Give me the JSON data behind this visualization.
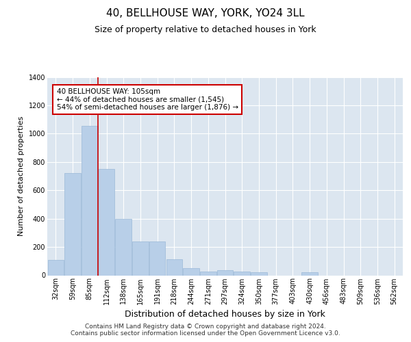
{
  "title": "40, BELLHOUSE WAY, YORK, YO24 3LL",
  "subtitle": "Size of property relative to detached houses in York",
  "xlabel": "Distribution of detached houses by size in York",
  "ylabel": "Number of detached properties",
  "categories": [
    "32sqm",
    "59sqm",
    "85sqm",
    "112sqm",
    "138sqm",
    "165sqm",
    "191sqm",
    "218sqm",
    "244sqm",
    "271sqm",
    "297sqm",
    "324sqm",
    "350sqm",
    "377sqm",
    "403sqm",
    "430sqm",
    "456sqm",
    "483sqm",
    "509sqm",
    "536sqm",
    "562sqm"
  ],
  "values": [
    110,
    720,
    1055,
    750,
    400,
    240,
    240,
    115,
    50,
    25,
    35,
    25,
    20,
    0,
    0,
    20,
    0,
    0,
    0,
    0,
    0
  ],
  "bar_color": "#b8cfe8",
  "bar_edge_color": "#9ab8d8",
  "vline_color": "#cc0000",
  "vline_x": 2.5,
  "annotation_text": "40 BELLHOUSE WAY: 105sqm\n← 44% of detached houses are smaller (1,545)\n54% of semi-detached houses are larger (1,876) →",
  "annotation_box_color": "#ffffff",
  "annotation_box_edge_color": "#cc0000",
  "ylim": [
    0,
    1400
  ],
  "yticks": [
    0,
    200,
    400,
    600,
    800,
    1000,
    1200,
    1400
  ],
  "background_color": "#dce6f0",
  "grid_color": "#ffffff",
  "footer": "Contains HM Land Registry data © Crown copyright and database right 2024.\nContains public sector information licensed under the Open Government Licence v3.0.",
  "title_fontsize": 11,
  "subtitle_fontsize": 9,
  "xlabel_fontsize": 9,
  "ylabel_fontsize": 8,
  "tick_fontsize": 7,
  "annotation_fontsize": 7.5,
  "footer_fontsize": 6.5
}
